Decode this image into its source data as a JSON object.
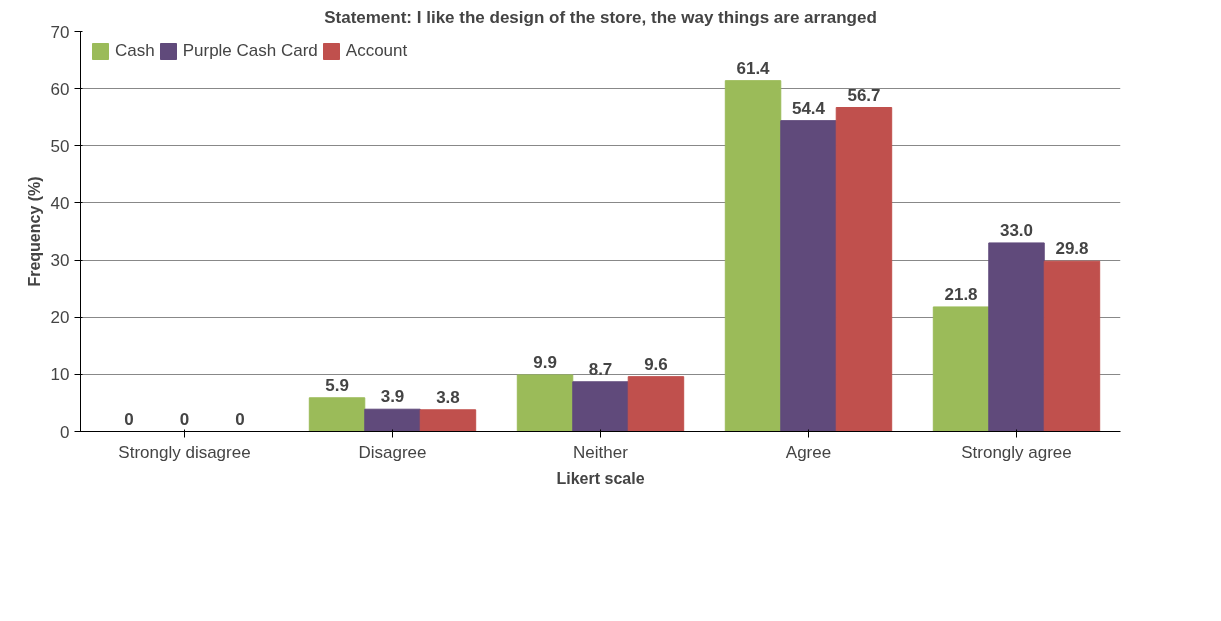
{
  "chart_data": {
    "type": "bar",
    "title": "Statement: I like the design of the store, the way things are arranged",
    "xlabel": "Likert scale",
    "ylabel": "Frequency (%)",
    "categories": [
      "Strongly disagree",
      "Disagree",
      "Neither",
      "Agree",
      "Strongly agree"
    ],
    "series": [
      {
        "name": "Cash",
        "color": "#9bbb59",
        "values": [
          0,
          5.9,
          9.9,
          61.4,
          21.8
        ],
        "value_labels": [
          "0",
          "5.9",
          "9.9",
          "61.4",
          "21.8"
        ]
      },
      {
        "name": "Purple Cash Card",
        "color": "#604a7b",
        "values": [
          0,
          3.9,
          8.7,
          54.4,
          33.0
        ],
        "value_labels": [
          "0",
          "3.9",
          "8.7",
          "54.4",
          "33.0"
        ]
      },
      {
        "name": "Account",
        "color": "#c0504d",
        "values": [
          0,
          3.8,
          9.6,
          56.7,
          29.8
        ],
        "value_labels": [
          "0",
          "3.8",
          "9.6",
          "56.7",
          "29.8"
        ]
      }
    ],
    "ylim": [
      0,
      70
    ],
    "yticks": [
      0,
      10,
      20,
      30,
      40,
      50,
      60,
      70
    ],
    "grid": "y",
    "legend": "top left"
  }
}
